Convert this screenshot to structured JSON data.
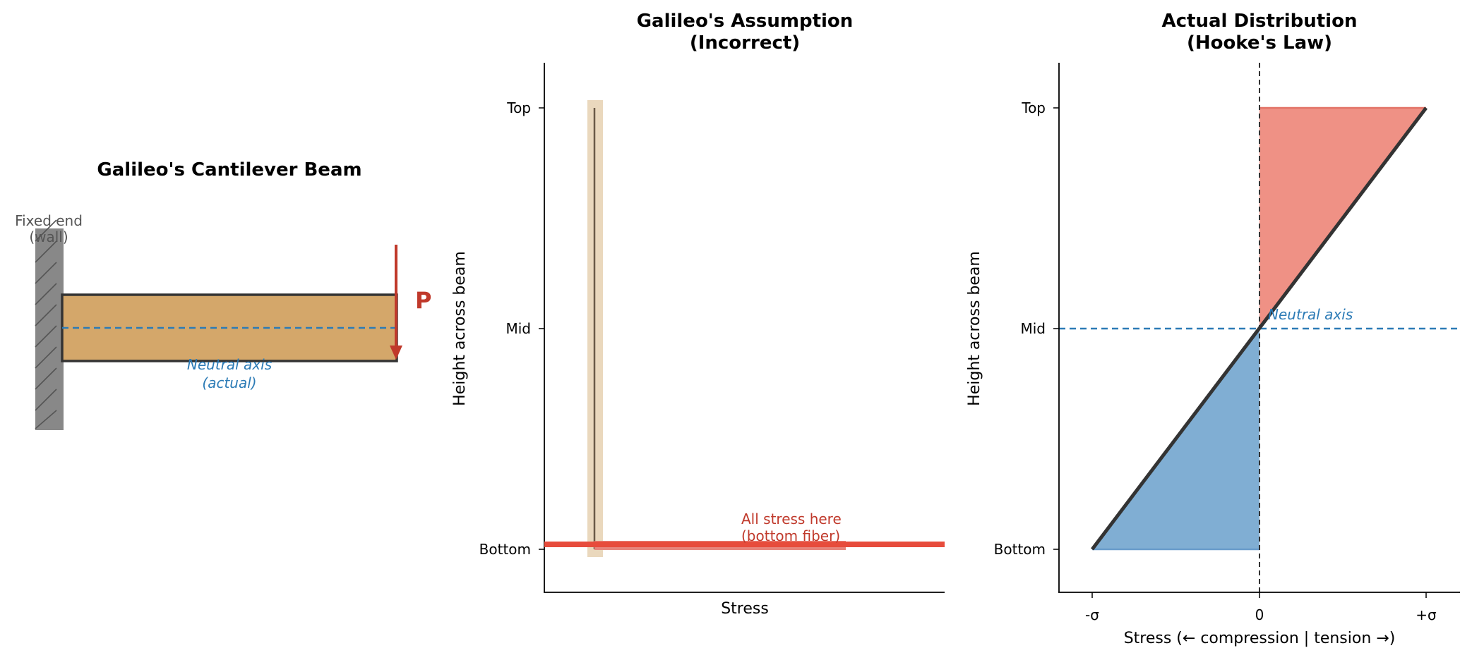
{
  "colors": {
    "wood": "#d4a76a",
    "wall": "#888888",
    "outline": "#333333",
    "neutral_blue": "#2c7bb6",
    "force_red": "#c0392b",
    "stress_red": "#e74c3c",
    "tension_fill": "#ef9185",
    "compression_fill": "#80aed3",
    "galileo_band": "#ead8bd"
  },
  "beam_panel": {
    "title": "Galileo's Cantilever Beam",
    "wall_label_line1": "Fixed end",
    "wall_label_line2": "(wall)",
    "neutral_axis_line1": "Neutral axis",
    "neutral_axis_line2": "(actual)",
    "force_label": "P"
  },
  "galileo_panel": {
    "title_line1": "Galileo's Assumption",
    "title_line2": "(Incorrect)",
    "ylabel": "Height across beam",
    "xlabel": "Stress",
    "yticks": [
      "Top",
      "Mid",
      "Bottom"
    ],
    "annotation_line1": "All stress here",
    "annotation_line2": "(bottom fiber)"
  },
  "actual_panel": {
    "title_line1": "Actual Distribution",
    "title_line2": "(Hooke's Law)",
    "ylabel": "Height across beam",
    "xlabel": "Stress  (← compression | tension →)",
    "yticks": [
      "Top",
      "Mid",
      "Bottom"
    ],
    "xticks": [
      "-σ",
      "0",
      "+σ"
    ],
    "neutral_axis_label": "Neutral axis"
  },
  "chart_data": [
    {
      "type": "line",
      "title": "Galileo's Assumption\n(Incorrect)",
      "xlabel": "Stress",
      "ylabel": "Height across beam",
      "y_categories": [
        "Bottom",
        "Mid",
        "Top"
      ],
      "series": [
        {
          "points": [
            [
              0,
              -1
            ],
            [
              0,
              1
            ]
          ]
        },
        {
          "points": [
            [
              0,
              -1
            ],
            [
              1,
              -1
            ]
          ]
        }
      ]
    },
    {
      "type": "area",
      "title": "Actual Distribution\n(Hooke's Law)",
      "xlabel": "Stress  (← compression | tension →)",
      "ylabel": "Height across beam",
      "x_categories": [
        "-σ",
        "0",
        "+σ"
      ],
      "y_categories": [
        "Bottom",
        "Mid",
        "Top"
      ],
      "series": [
        {
          "points": [
            [
              -1,
              -1
            ],
            [
              0,
              0
            ],
            [
              1,
              1
            ]
          ]
        }
      ],
      "xlim": [
        -1.2,
        1.2
      ],
      "ylim": [
        -1.2,
        1.2
      ]
    }
  ]
}
